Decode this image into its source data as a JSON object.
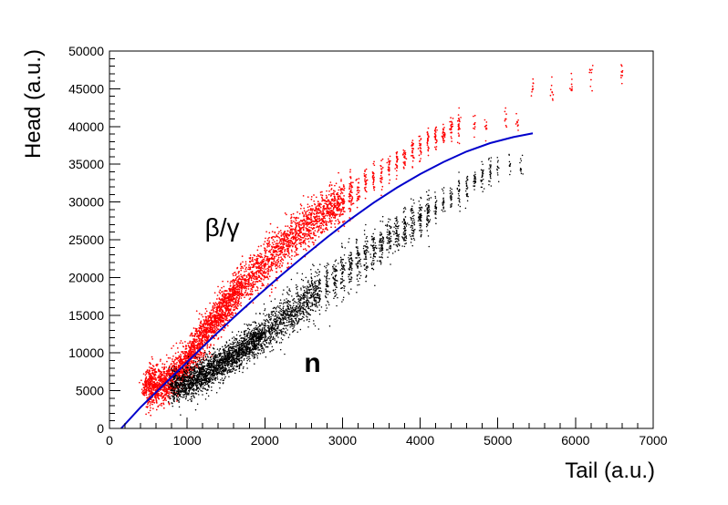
{
  "chart_data": {
    "type": "scatter",
    "xlabel": "Tail (a.u.)",
    "ylabel": "Head (a.u.)",
    "xlim": [
      0,
      7000
    ],
    "ylim": [
      0,
      50000
    ],
    "x_ticks": [
      0,
      1000,
      2000,
      3000,
      4000,
      5000,
      6000,
      7000
    ],
    "y_ticks": [
      0,
      5000,
      10000,
      15000,
      20000,
      25000,
      30000,
      35000,
      40000,
      45000,
      50000
    ],
    "annotations": [
      {
        "text": "β/γ",
        "x": 1300,
        "y": 25500
      },
      {
        "text": "n",
        "x": 2600,
        "y": 7500
      }
    ],
    "series": [
      {
        "color": "#ff0000",
        "marker": "dot",
        "points": [
          [
            470,
            5600
          ],
          [
            520,
            5700
          ],
          [
            560,
            5600
          ],
          [
            600,
            5650
          ],
          [
            650,
            5800
          ],
          [
            700,
            5900
          ],
          [
            750,
            6100
          ],
          [
            800,
            6500
          ],
          [
            850,
            7000
          ],
          [
            900,
            7500
          ],
          [
            950,
            8200
          ],
          [
            1000,
            9000
          ],
          [
            1050,
            9700
          ],
          [
            1100,
            10500
          ],
          [
            1150,
            11300
          ],
          [
            1200,
            12000
          ],
          [
            1250,
            12800
          ],
          [
            1300,
            13500
          ],
          [
            1350,
            14300
          ],
          [
            1400,
            15000
          ],
          [
            1450,
            15600
          ],
          [
            1500,
            16300
          ],
          [
            1550,
            17000
          ],
          [
            1600,
            17600
          ],
          [
            1650,
            18200
          ],
          [
            1700,
            18800
          ],
          [
            1750,
            19300
          ],
          [
            1800,
            19900
          ],
          [
            1850,
            20300
          ],
          [
            1900,
            20800
          ],
          [
            1950,
            21300
          ],
          [
            2000,
            21800
          ],
          [
            2050,
            22400
          ],
          [
            2100,
            23000
          ],
          [
            2150,
            23500
          ],
          [
            2200,
            24000
          ],
          [
            2250,
            24400
          ],
          [
            2300,
            24800
          ],
          [
            2350,
            25300
          ],
          [
            2400,
            25700
          ],
          [
            2450,
            26100
          ],
          [
            2500,
            26600
          ],
          [
            2550,
            27000
          ],
          [
            2600,
            27300
          ],
          [
            2650,
            27700
          ],
          [
            2700,
            28100
          ],
          [
            2750,
            28400
          ],
          [
            2800,
            28800
          ],
          [
            2850,
            29200
          ],
          [
            2900,
            29500
          ],
          [
            2950,
            29900
          ],
          [
            3000,
            30300
          ],
          [
            3100,
            30900
          ],
          [
            3200,
            31600
          ],
          [
            3300,
            32300
          ],
          [
            3400,
            33000
          ],
          [
            3500,
            33800
          ],
          [
            3600,
            34600
          ],
          [
            3700,
            35300
          ],
          [
            3800,
            36100
          ],
          [
            3900,
            36800
          ],
          [
            4000,
            37500
          ],
          [
            4100,
            38100
          ],
          [
            4200,
            38700
          ],
          [
            4300,
            39200
          ],
          [
            4400,
            39600
          ],
          [
            4500,
            39900
          ],
          [
            4700,
            40300
          ],
          [
            4850,
            39800
          ],
          [
            5100,
            41000
          ],
          [
            5250,
            40500
          ],
          [
            5450,
            45000
          ],
          [
            5700,
            44500
          ],
          [
            5950,
            45600
          ],
          [
            6200,
            46200
          ],
          [
            6600,
            47200
          ]
        ]
      },
      {
        "color": "#000000",
        "marker": "dot",
        "points": [
          [
            820,
            5600
          ],
          [
            880,
            5700
          ],
          [
            940,
            5800
          ],
          [
            1000,
            5900
          ],
          [
            1050,
            6200
          ],
          [
            1100,
            6500
          ],
          [
            1150,
            6800
          ],
          [
            1200,
            7100
          ],
          [
            1250,
            7400
          ],
          [
            1300,
            7700
          ],
          [
            1350,
            8000
          ],
          [
            1400,
            8300
          ],
          [
            1450,
            8600
          ],
          [
            1500,
            8900
          ],
          [
            1550,
            9300
          ],
          [
            1600,
            9700
          ],
          [
            1650,
            10000
          ],
          [
            1700,
            10400
          ],
          [
            1750,
            10800
          ],
          [
            1800,
            11200
          ],
          [
            1850,
            11500
          ],
          [
            1900,
            11900
          ],
          [
            1950,
            12300
          ],
          [
            2000,
            12600
          ],
          [
            2050,
            13000
          ],
          [
            2100,
            13400
          ],
          [
            2150,
            13800
          ],
          [
            2200,
            14200
          ],
          [
            2250,
            14600
          ],
          [
            2300,
            15000
          ],
          [
            2350,
            15400
          ],
          [
            2400,
            15800
          ],
          [
            2450,
            16200
          ],
          [
            2500,
            16600
          ],
          [
            2550,
            17000
          ],
          [
            2600,
            17400
          ],
          [
            2650,
            17800
          ],
          [
            2700,
            18200
          ],
          [
            2800,
            19000
          ],
          [
            2900,
            19800
          ],
          [
            3000,
            20600
          ],
          [
            3100,
            21300
          ],
          [
            3200,
            22100
          ],
          [
            3300,
            22800
          ],
          [
            3400,
            23600
          ],
          [
            3500,
            24300
          ],
          [
            3600,
            25100
          ],
          [
            3700,
            25800
          ],
          [
            3800,
            26500
          ],
          [
            3900,
            27200
          ],
          [
            4000,
            27900
          ],
          [
            4100,
            28600
          ],
          [
            4200,
            29300
          ],
          [
            4300,
            30000
          ],
          [
            4400,
            30700
          ],
          [
            4500,
            31400
          ],
          [
            4600,
            32100
          ],
          [
            4700,
            32800
          ],
          [
            4800,
            33400
          ],
          [
            4900,
            34000
          ],
          [
            5000,
            34600
          ],
          [
            5150,
            34800
          ],
          [
            5300,
            34300
          ]
        ]
      }
    ],
    "fit_line": {
      "color": "#0000cc",
      "points": [
        [
          150,
          0
        ],
        [
          400,
          2800
        ],
        [
          700,
          5800
        ],
        [
          1000,
          8800
        ],
        [
          1300,
          11800
        ],
        [
          1600,
          14700
        ],
        [
          1900,
          17500
        ],
        [
          2200,
          20200
        ],
        [
          2500,
          22800
        ],
        [
          2800,
          25300
        ],
        [
          3100,
          27700
        ],
        [
          3400,
          29900
        ],
        [
          3700,
          31900
        ],
        [
          4000,
          33700
        ],
        [
          4300,
          35300
        ],
        [
          4600,
          36700
        ],
        [
          4900,
          37800
        ],
        [
          5200,
          38600
        ],
        [
          5450,
          39100
        ]
      ]
    }
  }
}
